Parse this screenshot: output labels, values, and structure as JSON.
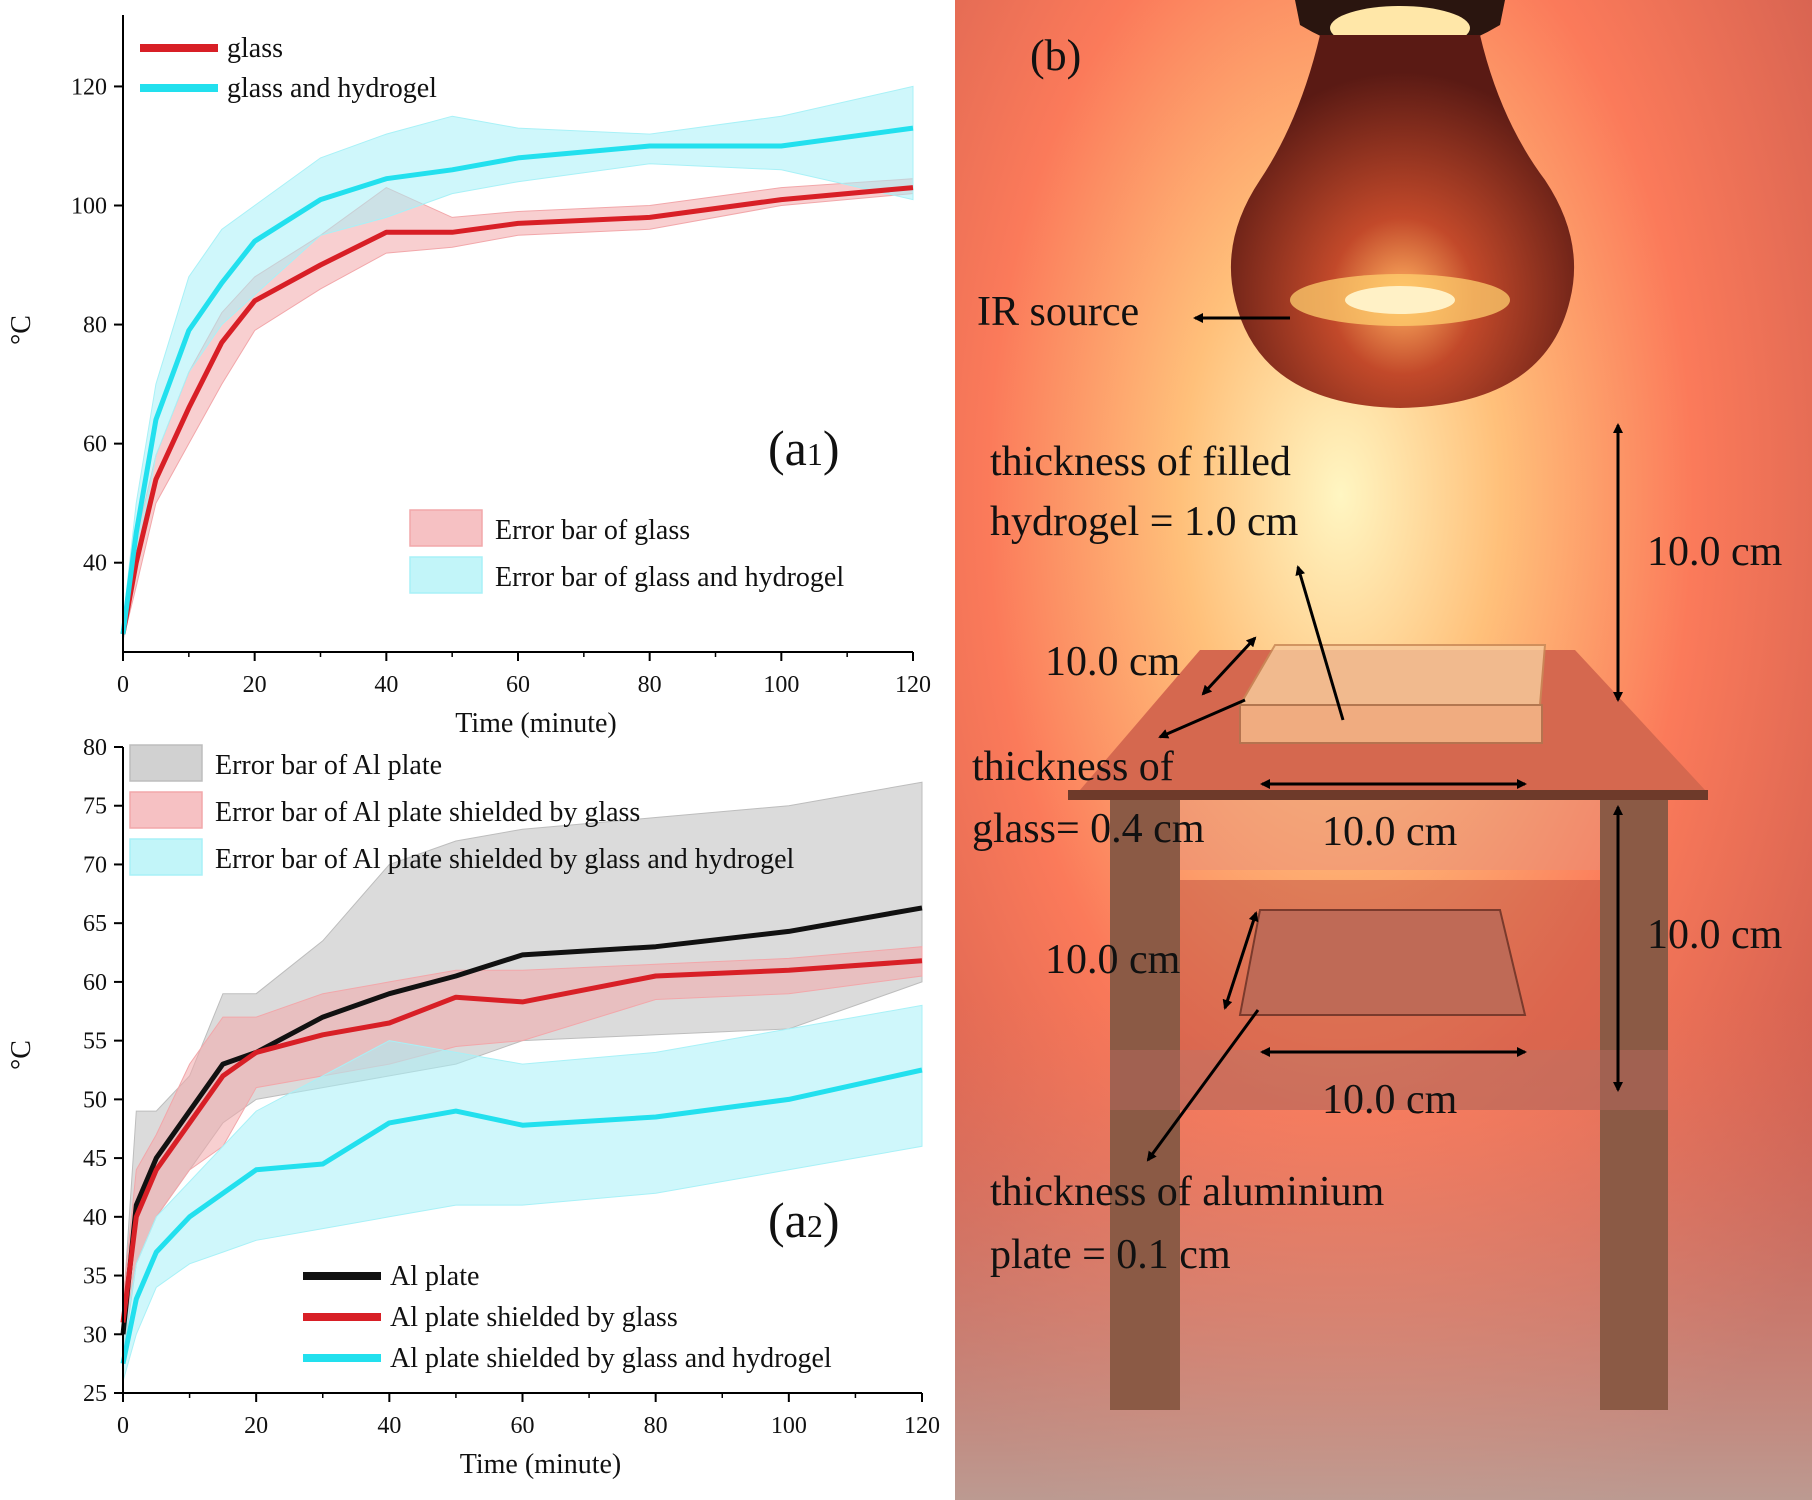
{
  "chart_data": [
    {
      "type": "line",
      "panel_label_main": "(a",
      "panel_label_sub": "1",
      "panel_label_close": ")",
      "xlabel": "Time (minute)",
      "ylabel": "°C",
      "xlim": [
        0,
        120
      ],
      "ylim": [
        25,
        132
      ],
      "xticks": [
        0,
        20,
        40,
        60,
        80,
        100,
        120
      ],
      "yticks": [
        40,
        60,
        80,
        100,
        120
      ],
      "x": [
        0,
        2,
        5,
        10,
        15,
        20,
        30,
        40,
        50,
        60,
        80,
        100,
        120
      ],
      "series": [
        {
          "name": "glass",
          "color": "#d81f26",
          "values": [
            28,
            40,
            54,
            66,
            77,
            84,
            90,
            95.5,
            95.5,
            97,
            98,
            101,
            103
          ],
          "lower": [
            27,
            36,
            50,
            60,
            70,
            79,
            86,
            92,
            93,
            95,
            96,
            100,
            102
          ],
          "upper": [
            29,
            44,
            58,
            72,
            82,
            88,
            95,
            103,
            98,
            99,
            100,
            103,
            104.5
          ],
          "band_color": "#f2a7aa"
        },
        {
          "name": "glass and hydrogel",
          "color": "#22e0ee",
          "values": [
            28,
            45,
            64,
            79,
            87,
            94,
            101,
            104.5,
            106,
            108,
            110,
            110,
            113
          ],
          "lower": [
            27,
            40,
            58,
            72,
            80,
            85,
            95,
            98,
            102,
            104,
            107,
            106,
            101
          ],
          "upper": [
            30,
            50,
            70,
            88,
            96,
            100,
            108,
            112,
            115,
            113,
            112,
            115,
            120
          ],
          "band_color": "#a8f1f7"
        }
      ],
      "legend_lines": [
        "glass",
        "glass and hydrogel"
      ],
      "legend_bands": [
        "Error bar of glass",
        "Error bar of glass and hydrogel"
      ]
    },
    {
      "type": "line",
      "panel_label_main": "(a",
      "panel_label_sub": "2",
      "panel_label_close": ")",
      "xlabel": "Time (minute)",
      "ylabel": "°C",
      "xlim": [
        0,
        120
      ],
      "ylim": [
        25,
        80
      ],
      "xticks": [
        0,
        20,
        40,
        60,
        80,
        100,
        120
      ],
      "yticks": [
        25,
        30,
        35,
        40,
        45,
        50,
        55,
        60,
        65,
        70,
        75,
        80
      ],
      "x": [
        0,
        2,
        5,
        10,
        15,
        20,
        30,
        40,
        50,
        60,
        80,
        100,
        120
      ],
      "series": [
        {
          "name": "Al plate",
          "color": "#111111",
          "values": [
            30,
            41,
            45,
            49,
            53,
            54,
            57,
            59,
            60.5,
            62.3,
            63,
            64.3,
            66.3
          ],
          "lower": [
            28,
            36,
            40,
            44,
            48,
            50,
            51,
            52,
            53,
            55,
            55.5,
            56,
            60
          ],
          "upper": [
            32,
            49,
            49,
            52,
            59,
            59,
            63.5,
            70,
            72,
            73,
            74,
            75,
            77
          ],
          "band_color": "#bdbdbd"
        },
        {
          "name": "Al plate shielded by glass",
          "color": "#d81f26",
          "values": [
            31,
            40,
            44,
            48,
            52,
            54,
            55.5,
            56.5,
            58.7,
            58.3,
            60.5,
            61,
            61.8
          ],
          "lower": [
            29,
            36,
            40,
            44,
            46,
            51,
            52,
            53,
            54.5,
            55,
            58.5,
            59,
            60.5
          ],
          "upper": [
            33,
            44,
            47,
            53,
            57,
            57,
            59,
            60,
            61,
            61,
            61.5,
            62,
            63
          ],
          "band_color": "#f2a7aa"
        },
        {
          "name": "Al plate shielded by glass and hydrogel",
          "color": "#22e0ee",
          "values": [
            27.5,
            33,
            37,
            40,
            42,
            44,
            44.5,
            48,
            49,
            47.8,
            48.5,
            50,
            52.5
          ],
          "lower": [
            26,
            30,
            34,
            36,
            37,
            38,
            39,
            40,
            41,
            41,
            42,
            44,
            46
          ],
          "upper": [
            29,
            36,
            40,
            43,
            46,
            49,
            52,
            55,
            54,
            53,
            54,
            56,
            58
          ],
          "band_color": "#a8f1f7"
        }
      ],
      "legend_bands": [
        "Error bar of Al plate",
        "Error bar of Al plate shielded by glass",
        "Error bar of Al plate shielded by glass and hydrogel"
      ],
      "legend_lines": [
        "Al plate",
        "Al plate shielded by glass",
        "Al plate shielded by glass and hydrogel"
      ]
    }
  ],
  "photo": {
    "panel_label": "(b)",
    "ir_source": "IR source",
    "hydrogel_label_1": "thickness of filled",
    "hydrogel_label_2": "hydrogel = 1.0 cm",
    "lamp_gap": "10.0 cm",
    "glass_depth": "10.0 cm",
    "glass_label_1": "thickness of",
    "glass_label_2": "glass= 0.4 cm",
    "glass_width": "10.0 cm",
    "table_height": "10.0 cm",
    "al_depth": "10.0 cm",
    "al_width": "10.0 cm",
    "al_label_1": "thickness of aluminium",
    "al_label_2": "plate = 0.1 cm"
  }
}
